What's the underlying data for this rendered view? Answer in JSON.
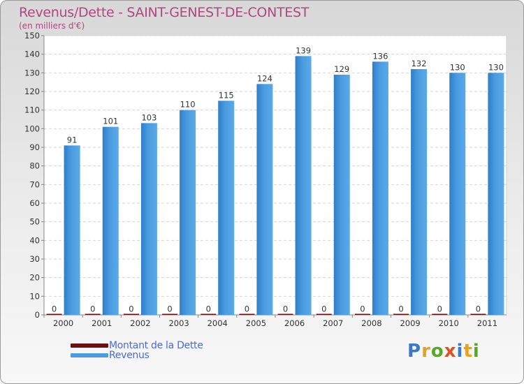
{
  "header": {
    "title": "Revenus/Dette - SAINT-GENEST-DE-CONTEST",
    "subtitle": "(en milliers d'€)"
  },
  "colors": {
    "title": "#b2467e",
    "revenus": "#4a9be0",
    "dette": "#6b0f0f",
    "legend_text": "#4a6ae0"
  },
  "legend": {
    "items": [
      {
        "label": "Montant de la Dette",
        "color": "#6b0f0f"
      },
      {
        "label": "Revenus",
        "color": "#4a9be0"
      }
    ]
  },
  "logo": {
    "text": "Proxiti",
    "letter_colors": [
      "#3a78c8",
      "#e8a020",
      "#58a828",
      "#e05020",
      "#3a78c8",
      "#e8a020",
      "#58a828"
    ]
  },
  "chart_data": {
    "type": "bar",
    "title": "Revenus/Dette - SAINT-GENEST-DE-CONTEST",
    "subtitle": "(en milliers d'€)",
    "xlabel": "",
    "ylabel": "",
    "categories": [
      "2000",
      "2001",
      "2002",
      "2003",
      "2004",
      "2005",
      "2006",
      "2007",
      "2008",
      "2009",
      "2010",
      "2011"
    ],
    "series": [
      {
        "name": "Montant de la Dette",
        "values": [
          0,
          0,
          0,
          0,
          0,
          0,
          0,
          0,
          0,
          0,
          0,
          0
        ]
      },
      {
        "name": "Revenus",
        "values": [
          91,
          101,
          103,
          110,
          115,
          124,
          139,
          129,
          136,
          132,
          130,
          130
        ]
      }
    ],
    "ylim": [
      0,
      150
    ],
    "yticks": [
      0,
      10,
      20,
      30,
      40,
      50,
      60,
      70,
      80,
      90,
      100,
      110,
      120,
      130,
      140,
      150
    ],
    "grid": true,
    "legend_position": "bottom-left"
  }
}
